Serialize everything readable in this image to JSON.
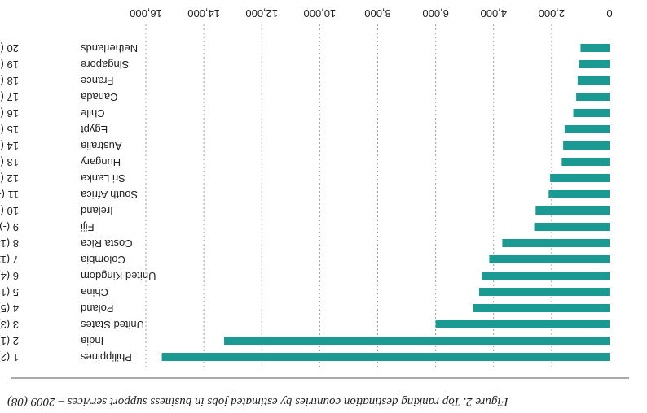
{
  "colors": {
    "bar": "#1b9a93",
    "grid": "#9a9a9a",
    "text": "#222222",
    "rule": "#555555"
  },
  "caption": "Figure 2. Top ranking destination countries by estimated jobs in business support services – 2009 (08)",
  "chart_data": {
    "type": "bar",
    "orientation": "horizontal",
    "rendered_rotation": "180deg",
    "title": "",
    "xlabel": "",
    "ylabel": "",
    "xlim": [
      0,
      16000
    ],
    "xticks": [
      0,
      2000,
      4000,
      6000,
      8000,
      10000,
      12000,
      14000,
      16000
    ],
    "xtick_labels": [
      "0",
      "2,000",
      "4,000",
      "6,000",
      "8,000",
      "10,000",
      "12,000",
      "14,000",
      "16,000"
    ],
    "grid": "vertical dotted",
    "categories": [
      "1 (2) Philippines",
      "2 (1) India",
      "3 (3) United States",
      "4 (5) Poland",
      "5 (13) China",
      "6 (4) United Kingdom",
      "7 (11) Colombia",
      "8 (14) Costa Rica",
      "9 (-) Fiji",
      "10 (-) Ireland",
      "11 (-) South Africa",
      "12 (-) Sri Lanka",
      "13 (15) Hungary",
      "14 (20) Australia",
      "15 (-) Egypt",
      "16 (-) Chile",
      "17 (6) Canada",
      "18 (16) France",
      "19 (-) Singapore",
      "20 (-) Netherlands"
    ],
    "ranks": [
      "1 (2)",
      "2 (1)",
      "3 (3)",
      "4 (5)",
      "5 (13)",
      "6 (4)",
      "7 (11)",
      "8 (14)",
      "9 (-)",
      "10 (-)",
      "11 (-)",
      "12 (-)",
      "13 (15)",
      "14 (20)",
      "15 (-)",
      "16 (-)",
      "17 (6)",
      "18 (16)",
      "19 (-)",
      "20 (-)"
    ],
    "countries": [
      "Philippines",
      "India",
      "United States",
      "Poland",
      "China",
      "United Kingdom",
      "Colombia",
      "Costa Rica",
      "Fiji",
      "Ireland",
      "South Africa",
      "Sri Lanka",
      "Hungary",
      "Australia",
      "Egypt",
      "Chile",
      "Canada",
      "France",
      "Singapore",
      "Netherlands"
    ],
    "values": [
      15450,
      13300,
      6000,
      4700,
      4500,
      4400,
      4150,
      3700,
      2600,
      2550,
      2100,
      2050,
      1650,
      1600,
      1550,
      1250,
      1150,
      1100,
      1050,
      1000
    ]
  }
}
